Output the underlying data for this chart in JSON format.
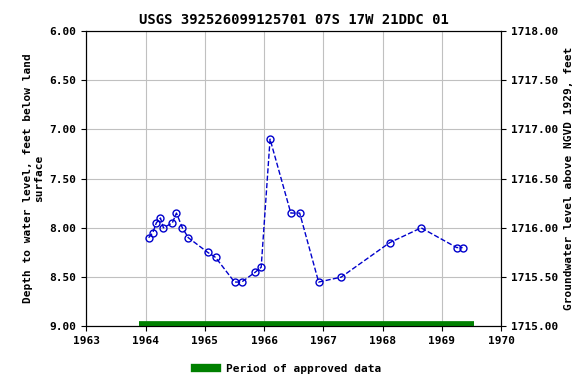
{
  "title": "USGS 392526099125701 07S 17W 21DDC 01",
  "ylabel_left": "Depth to water level, feet below land\nsurface",
  "ylabel_right": "Groundwater level above NGVD 1929, feet",
  "xlim": [
    1963,
    1970
  ],
  "ylim_left": [
    9.0,
    6.0
  ],
  "ylim_right": [
    1715.0,
    1718.0
  ],
  "yticks_left": [
    6.0,
    6.5,
    7.0,
    7.5,
    8.0,
    8.5,
    9.0
  ],
  "yticks_right": [
    1715.0,
    1715.5,
    1716.0,
    1716.5,
    1717.0,
    1717.5,
    1718.0
  ],
  "xticks": [
    1963,
    1964,
    1965,
    1966,
    1967,
    1968,
    1969,
    1970
  ],
  "data_x": [
    1964.05,
    1964.12,
    1964.18,
    1964.25,
    1964.3,
    1964.45,
    1964.52,
    1964.62,
    1964.72,
    1965.05,
    1965.18,
    1965.5,
    1965.62,
    1965.85,
    1965.95,
    1966.1,
    1966.45,
    1966.6,
    1966.92,
    1967.3,
    1968.12,
    1968.65,
    1969.25,
    1969.35
  ],
  "data_y": [
    8.1,
    8.05,
    7.95,
    7.9,
    8.0,
    7.95,
    7.85,
    8.0,
    8.1,
    8.25,
    8.3,
    8.55,
    8.55,
    8.45,
    8.4,
    7.1,
    7.85,
    7.85,
    8.55,
    8.5,
    8.15,
    8.0,
    8.2,
    8.2
  ],
  "line_color": "#0000cc",
  "marker_color": "#0000cc",
  "marker_size": 5,
  "line_style": "--",
  "line_width": 1.0,
  "grid_color": "#c0c0c0",
  "bg_color": "#ffffff",
  "legend_line_color": "#008000",
  "legend_label": "Period of approved data",
  "approved_bar_xstart": 1963.88,
  "approved_bar_xend": 1969.55,
  "title_fontsize": 10,
  "axis_fontsize": 8,
  "tick_fontsize": 8,
  "font_family": "monospace"
}
